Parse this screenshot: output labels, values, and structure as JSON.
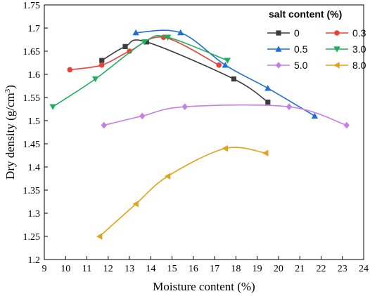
{
  "chart_data": {
    "type": "line",
    "xlabel": "Moisture content (%)",
    "ylabel_main": "Dry density (g/cm",
    "ylabel_sup": "3",
    "ylabel_tail": ")",
    "xlim": [
      9,
      24
    ],
    "ylim": [
      1.2,
      1.75
    ],
    "xticks": [
      "9",
      "10",
      "11",
      "12",
      "13",
      "14",
      "15",
      "16",
      "17",
      "18",
      "19",
      "20",
      "21",
      "22",
      "23",
      "24"
    ],
    "yticks": [
      "1.2",
      "1.25",
      "1.3",
      "1.35",
      "1.4",
      "1.45",
      "1.5",
      "1.55",
      "1.6",
      "1.65",
      "1.7",
      "1.75"
    ],
    "grid": false,
    "legend_title": "salt content (%)",
    "legend_placement": "top-right",
    "series": [
      {
        "name": "0",
        "color": "#3d3d3d",
        "marker": "square",
        "x": [
          11.7,
          12.8,
          13.8,
          17.9,
          19.5
        ],
        "y": [
          1.63,
          1.66,
          1.67,
          1.59,
          1.54
        ]
      },
      {
        "name": "0.3",
        "color": "#e8413a",
        "marker": "circle",
        "x": [
          10.2,
          11.7,
          13.0,
          14.6,
          17.2
        ],
        "y": [
          1.61,
          1.62,
          1.65,
          1.68,
          1.62
        ]
      },
      {
        "name": "0.5",
        "color": "#1f6fd6",
        "marker": "triangle-up",
        "x": [
          13.3,
          15.4,
          17.5,
          19.5,
          21.7
        ],
        "y": [
          1.69,
          1.69,
          1.62,
          1.57,
          1.51
        ]
      },
      {
        "name": "3.0",
        "color": "#1fae5f",
        "marker": "triangle-down",
        "x": [
          9.4,
          11.4,
          13.7,
          14.8,
          17.6
        ],
        "y": [
          1.53,
          1.59,
          1.67,
          1.68,
          1.63
        ]
      },
      {
        "name": "5.0",
        "color": "#c67de8",
        "marker": "diamond",
        "x": [
          11.8,
          13.6,
          15.6,
          20.5,
          23.2
        ],
        "y": [
          1.49,
          1.51,
          1.53,
          1.53,
          1.49
        ]
      },
      {
        "name": "8.0",
        "color": "#e3a21a",
        "marker": "triangle-left",
        "x": [
          11.6,
          13.3,
          14.8,
          17.5,
          19.4
        ],
        "y": [
          1.25,
          1.32,
          1.38,
          1.44,
          1.43
        ]
      }
    ]
  }
}
